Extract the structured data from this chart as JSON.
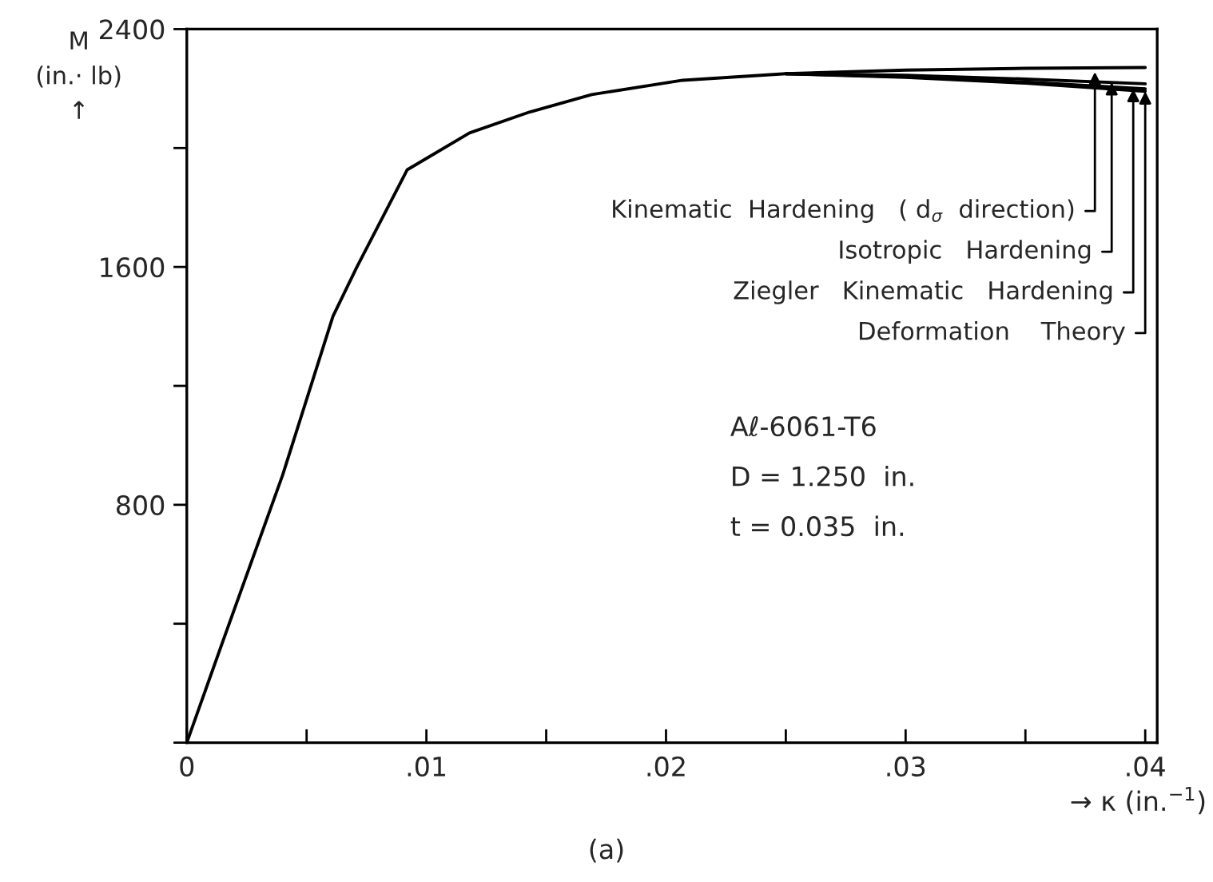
{
  "chart_data": {
    "type": "line",
    "title": "(a)",
    "xlabel": "→ κ (in.$^{−1}$)",
    "ylabel": "M\n(in.· lb)\n↑",
    "series": [
      {
        "color": "#000000",
        "x": [
          0,
          0.0015,
          0.004,
          0.0061,
          0.0071,
          0.0092,
          0.0118,
          0.0143,
          0.0169,
          0.0207,
          0.025,
          0.03,
          0.035,
          0.04
        ],
        "values": [
          0,
          340,
          900,
          1434,
          1600,
          1927,
          2051,
          2121,
          2180,
          2228,
          2250,
          2262,
          2268,
          2271
        ]
      },
      {
        "color": "#000000",
        "x": [
          0.025,
          0.03,
          0.035,
          0.04
        ],
        "values": [
          2250,
          2245,
          2232,
          2216
        ]
      },
      {
        "color": "#000000",
        "x": [
          0.025,
          0.03,
          0.035,
          0.04
        ],
        "values": [
          2250,
          2240,
          2222,
          2199
        ]
      },
      {
        "color": "#000000",
        "x": [
          0.025,
          0.03,
          0.035,
          0.04
        ],
        "values": [
          2250,
          2238,
          2218,
          2191
        ]
      }
    ],
    "annotations": [
      {
        "text": "Kinematic  Hardening   ( d$_{σ}$  direction)",
        "x": 0.0379,
        "y": 2256
      },
      {
        "text": "Isotropic   Hardening",
        "x": 0.0386,
        "y": 2222
      },
      {
        "text": "Ziegler   Kinematic   Hardening",
        "x": 0.0395,
        "y": 2199
      },
      {
        "text": "Deformation    Theory",
        "x": 0.04,
        "y": 2191
      },
      "Aℓ-6061-T6",
      "D = 1.250  in.",
      "t = 0.035  in."
    ],
    "xlim": [
      0,
      0.0405
    ],
    "ylim": [
      0,
      2400
    ],
    "xticks": [
      0,
      {
        "value": 0.005,
        "label": null
      },
      {
        "value": 0.01,
        "label": ".01"
      },
      {
        "value": 0.015,
        "label": null
      },
      {
        "value": 0.02,
        "label": ".02"
      },
      {
        "value": 0.025,
        "label": null
      },
      {
        "value": 0.03,
        "label": ".03"
      },
      {
        "value": 0.035,
        "label": null
      },
      {
        "value": 0.04,
        "label": ".04"
      }
    ],
    "yticks": [
      {
        "value": 0,
        "label": null
      },
      {
        "value": 400,
        "label": null
      },
      800,
      {
        "value": 1200,
        "label": null
      },
      1600,
      {
        "value": 2000,
        "label": null
      },
      2400
    ]
  }
}
